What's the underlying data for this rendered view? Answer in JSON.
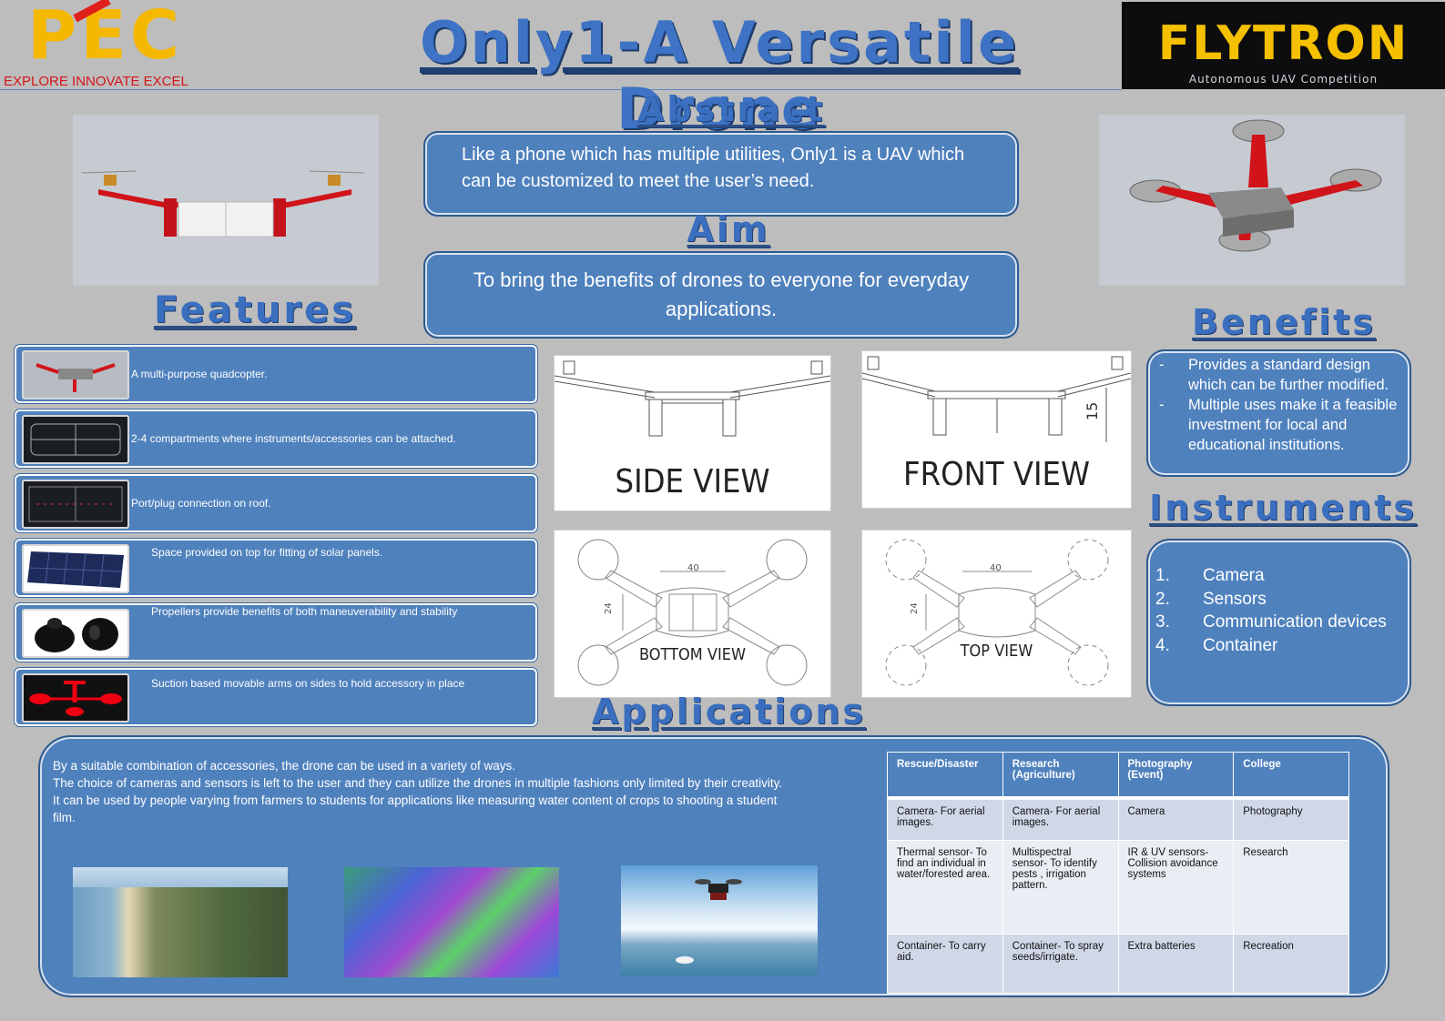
{
  "header": {
    "logo_left_text": "PEC",
    "logo_left_tagline": "EXPLORE INNOVATE EXCEL",
    "title": "Only1-A Versatile Drone",
    "logo_right_text": "FLYTRON",
    "logo_right_tagline": "Autonomous UAV Competition"
  },
  "abstract": {
    "heading": "Abstract",
    "text": "Like a phone which has multiple utilities, Only1 is a UAV which can be customized to meet the user’s need."
  },
  "aim": {
    "heading": "Aim",
    "text": "To bring the benefits of drones to everyone for everyday applications."
  },
  "features": {
    "heading": "Features",
    "items": [
      {
        "text": "A  multi-purpose  quadcopter."
      },
      {
        "text": "2-4 compartments where instruments/accessories  can be attached."
      },
      {
        "text": "Port/plug connection on roof."
      },
      {
        "text": "Space provided on top for fitting of  solar panels."
      },
      {
        "text": "Propellers provide  benefits of both maneuverability and stability"
      },
      {
        "text": "Suction based movable  arms on sides to hold accessory in place"
      }
    ]
  },
  "views": {
    "side": "SIDE VIEW",
    "front": "FRONT VIEW",
    "bottom": "BOTTOM VIEW",
    "top": "TOP VIEW",
    "dim_40": "40",
    "dim_24": "24",
    "dim_15": "15"
  },
  "benefits": {
    "heading": "Benefits",
    "items": [
      "Provides a standard  design which can be further modified.",
      "Multiple uses make it a feasible investment for local and educational institutions."
    ],
    "bullet": "-"
  },
  "instruments": {
    "heading": "Instruments",
    "items": [
      {
        "num": "1.",
        "label": "Camera"
      },
      {
        "num": "2.",
        "label": "Sensors"
      },
      {
        "num": "3.",
        "label": "Communication devices"
      },
      {
        "num": "4.",
        "label": "Container"
      }
    ]
  },
  "applications": {
    "heading": "Applications",
    "paragraphs": [
      " By a suitable combination  of accessories, the drone  can be used in a variety of ways.",
      "The choice of cameras and sensors is left to the user and they can utilize the drones  in  multiple  fashions only limited by their creativity.",
      "It can be used by people varying from farmers to students for applications like  measuring water content of crops to shooting a student film."
    ],
    "table": {
      "headers": [
        "Rescue/Disaster",
        "Research (Agriculture)",
        "Photography (Event)",
        "College"
      ],
      "rows": [
        [
          "Camera- For aerial images.",
          "Camera- For aerial images.",
          "Camera",
          "Photography"
        ],
        [
          "Thermal sensor- To find an  individual in water/forested area.",
          "Multispectral sensor- To identify pests , irrigation pattern.",
          "IR & UV sensors- Collision avoidance systems",
          "Research"
        ],
        [
          "Container- To carry aid.",
          "Container- To spray seeds/irrigate.",
          "Extra batteries",
          "Recreation"
        ]
      ]
    }
  },
  "colors": {
    "background": "#bdbdbd",
    "box_blue": "#4f81bd",
    "heading_blue": "#3a6fc0",
    "pec_yellow": "#f5b800",
    "pec_red": "#e0201b",
    "drone_red": "#d0141a"
  }
}
